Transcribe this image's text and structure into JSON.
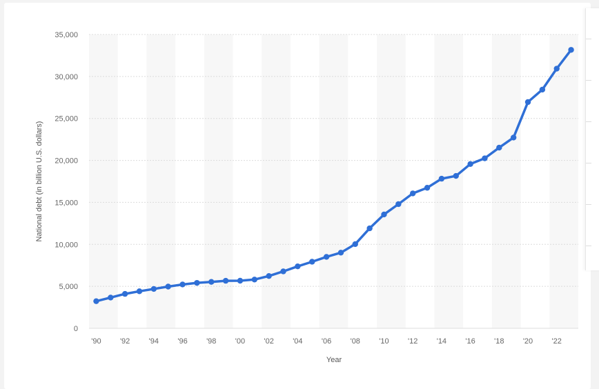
{
  "chart_data": {
    "type": "line",
    "title": "",
    "xlabel": "Year",
    "ylabel": "National debt (in billion U.S. dollars)",
    "ylim": [
      0,
      35000
    ],
    "yticks": [
      0,
      5000,
      10000,
      15000,
      20000,
      25000,
      30000,
      35000
    ],
    "ytick_labels": [
      "0",
      "5,000",
      "10,000",
      "15,000",
      "20,000",
      "25,000",
      "30,000",
      "35,000"
    ],
    "xlim": [
      1990,
      2023
    ],
    "xticks": [
      1990,
      1992,
      1994,
      1996,
      1998,
      2000,
      2002,
      2004,
      2006,
      2008,
      2010,
      2012,
      2014,
      2016,
      2018,
      2020,
      2022
    ],
    "xtick_labels": [
      "'90",
      "'92",
      "'94",
      "'96",
      "'98",
      "'00",
      "'02",
      "'04",
      "'06",
      "'08",
      "'10",
      "'12",
      "'14",
      "'16",
      "'18",
      "'20",
      "'22"
    ],
    "grid": true,
    "alternating_column_bands": true,
    "series": [
      {
        "name": "",
        "color": "#2f6fd6",
        "x": [
          1990,
          1991,
          1992,
          1993,
          1994,
          1995,
          1996,
          1997,
          1998,
          1999,
          2000,
          2001,
          2002,
          2003,
          2004,
          2005,
          2006,
          2007,
          2008,
          2009,
          2010,
          2011,
          2012,
          2013,
          2014,
          2015,
          2016,
          2017,
          2018,
          2019,
          2020,
          2021,
          2022,
          2023
        ],
        "values": [
          3230,
          3660,
          4100,
          4410,
          4690,
          4970,
          5220,
          5410,
          5530,
          5660,
          5670,
          5810,
          6230,
          6780,
          7380,
          7930,
          8510,
          9010,
          10030,
          11910,
          13560,
          14790,
          16070,
          16740,
          17820,
          18150,
          19570,
          20250,
          21520,
          22720,
          26950,
          28430,
          30930,
          33170
        ]
      }
    ]
  }
}
